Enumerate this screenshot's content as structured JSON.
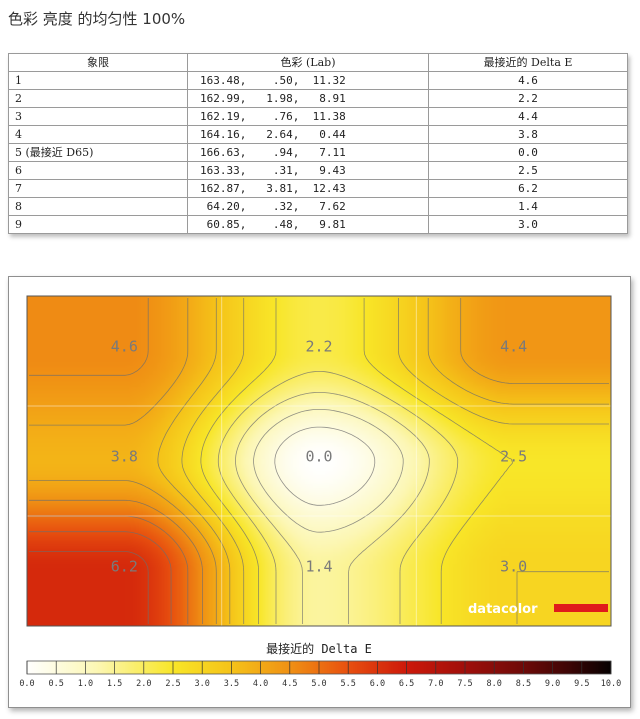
{
  "page_title": "色彩 亮度 的均匀性 100%",
  "table": {
    "headers": [
      "象限",
      "色彩 (Lab)",
      "最接近的 Delta E"
    ],
    "rows": [
      {
        "quadrant": "1",
        "lab": "163.48,    .50,  11.32",
        "delta_e": "4.6"
      },
      {
        "quadrant": "2",
        "lab": "162.99,   1.98,   8.91",
        "delta_e": "2.2"
      },
      {
        "quadrant": "3",
        "lab": "162.19,    .76,  11.38",
        "delta_e": "4.4"
      },
      {
        "quadrant": "4",
        "lab": "164.16,   2.64,   0.44",
        "delta_e": "3.8"
      },
      {
        "quadrant": "5 (最接近 D65)",
        "lab": "166.63,    .94,   7.11",
        "delta_e": "0.0"
      },
      {
        "quadrant": "6",
        "lab": "163.33,    .31,   9.43",
        "delta_e": "2.5"
      },
      {
        "quadrant": "7",
        "lab": "162.87,   3.81,  12.43",
        "delta_e": "6.2"
      },
      {
        "quadrant": "8",
        "lab": " 64.20,    .32,   7.62",
        "delta_e": "1.4"
      },
      {
        "quadrant": "9",
        "lab": " 60.85,    .48,   9.81",
        "delta_e": "3.0"
      }
    ]
  },
  "chart_data": {
    "type": "heatmap",
    "rows": 3,
    "cols": 3,
    "cells": [
      [
        4.6,
        2.2,
        4.4
      ],
      [
        3.8,
        0.0,
        2.5
      ],
      [
        6.2,
        1.4,
        3.0
      ]
    ],
    "legend_title": "最接近的 Delta E",
    "scale_min": 0,
    "scale_max": 10,
    "scale_ticks": [
      "0.0",
      "0.5",
      "1.0",
      "1.5",
      "2.0",
      "2.5",
      "3.0",
      "3.5",
      "4.0",
      "4.5",
      "5.0",
      "5.5",
      "6.0",
      "6.5",
      "7.0",
      "7.5",
      "8.0",
      "8.5",
      "9.0",
      "9.5",
      "10.0"
    ]
  },
  "brand": {
    "name": "datacolor",
    "accent_color": "#e01b1b"
  }
}
